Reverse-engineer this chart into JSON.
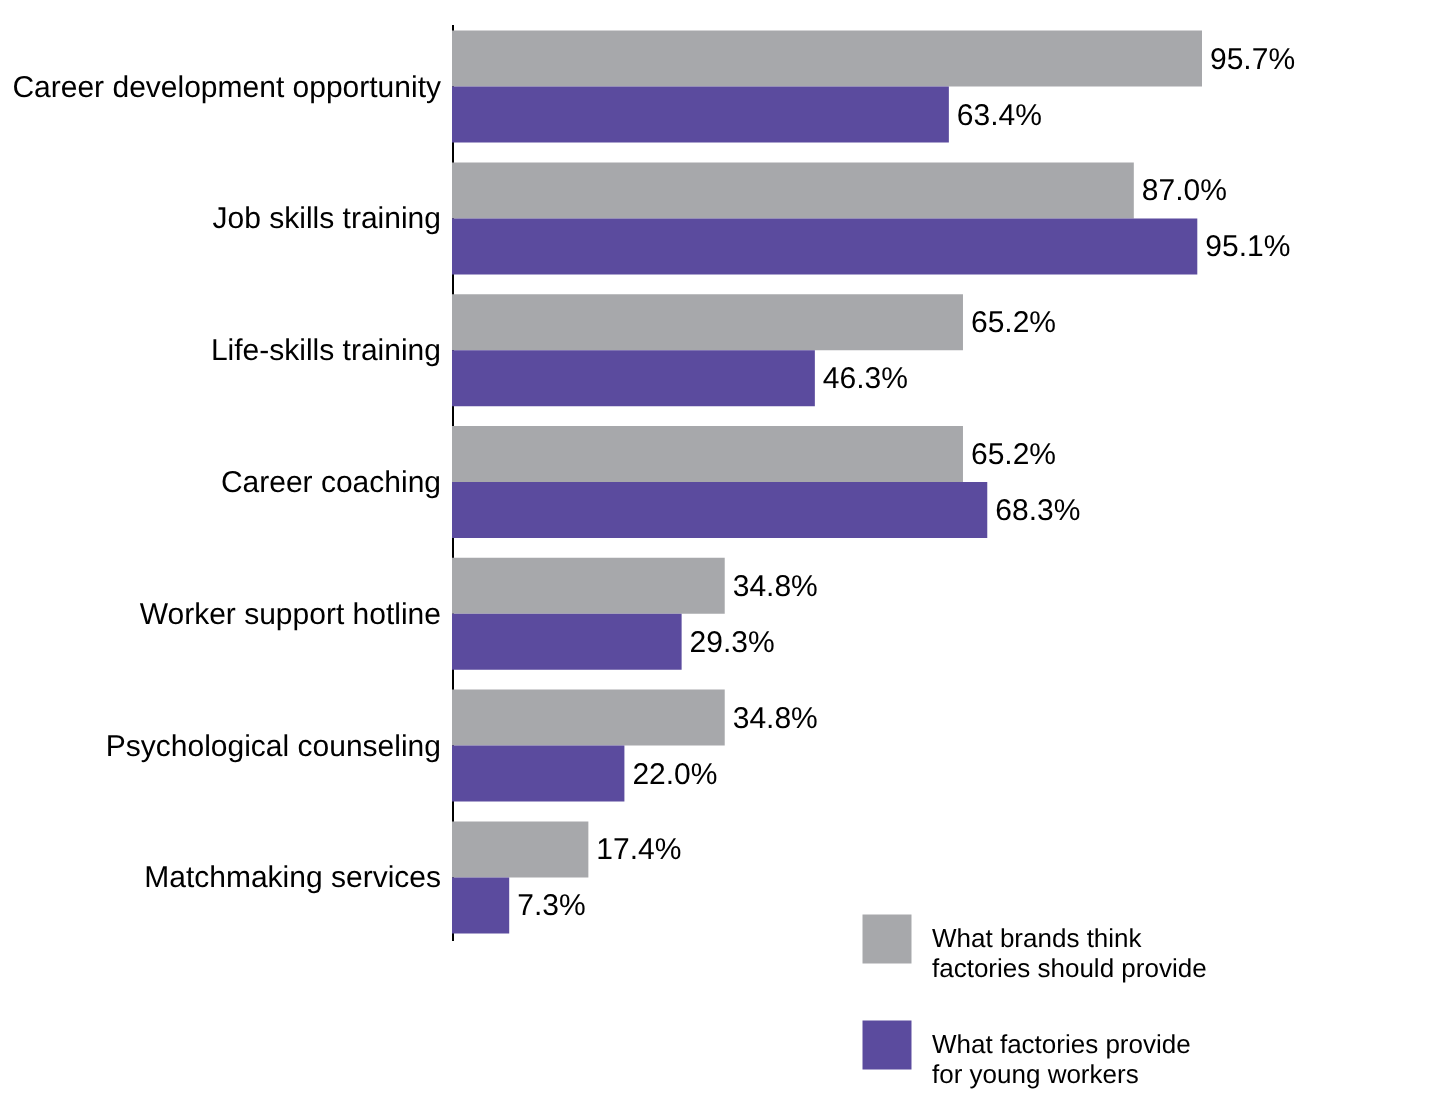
{
  "chart_data": {
    "type": "bar",
    "orientation": "horizontal",
    "tick_labels": "y",
    "legend": "bottom right",
    "grid": false,
    "categories": [
      "Career development opportunity",
      "Job skills training",
      "Life-skills training",
      "Career coaching",
      "Worker support hotline",
      "Psychological counseling",
      "Matchmaking services"
    ],
    "series": [
      {
        "name": "What brands think factories should provide",
        "color": "#a7a8ab",
        "values": [
          95.7,
          87.0,
          65.2,
          65.2,
          34.8,
          34.8,
          17.4
        ],
        "value_labels": [
          "95.7%",
          "87.0%",
          "65.2%",
          "65.2%",
          "34.8%",
          "34.8%",
          "17.4%"
        ]
      },
      {
        "name": "What factories provide for young workers",
        "color": "#5b4b9e",
        "values": [
          63.4,
          95.1,
          46.3,
          68.3,
          29.3,
          22.0,
          7.3
        ],
        "value_labels": [
          "63.4%",
          "95.1%",
          "46.3%",
          "68.3%",
          "29.3%",
          "22.0%",
          "7.3%"
        ]
      }
    ]
  }
}
